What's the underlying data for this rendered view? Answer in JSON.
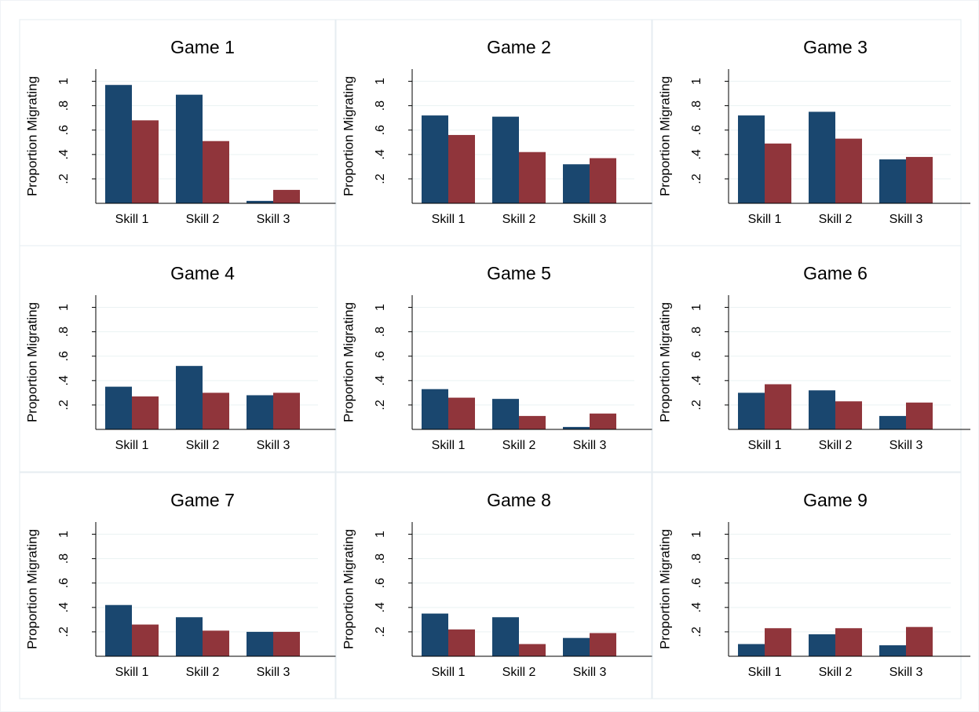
{
  "chart_data": [
    {
      "type": "bar",
      "title": "Game 1",
      "ylabel": "Proportion Migrating",
      "categories": [
        "Skill 1",
        "Skill 2",
        "Skill 3"
      ],
      "series": [
        {
          "color": "#1a476f",
          "values": [
            0.97,
            0.89,
            0.02
          ]
        },
        {
          "color": "#90353b",
          "values": [
            0.68,
            0.51,
            0.11
          ]
        }
      ],
      "ylim": [
        0,
        1.1
      ],
      "yticks": [
        {
          "value": 0.2,
          "label": ".2"
        },
        {
          "value": 0.4,
          "label": ".4"
        },
        {
          "value": 0.6,
          "label": ".6"
        },
        {
          "value": 0.8,
          "label": ".8"
        },
        1
      ],
      "grid": true
    },
    {
      "type": "bar",
      "title": "Game 2",
      "ylabel": "Proportion Migrating",
      "categories": [
        "Skill 1",
        "Skill 2",
        "Skill 3"
      ],
      "series": [
        {
          "color": "#1a476f",
          "values": [
            0.72,
            0.71,
            0.32
          ]
        },
        {
          "color": "#90353b",
          "values": [
            0.56,
            0.42,
            0.37
          ]
        }
      ],
      "ylim": [
        0,
        1.1
      ],
      "yticks": [
        {
          "value": 0.2,
          "label": ".2"
        },
        {
          "value": 0.4,
          "label": ".4"
        },
        {
          "value": 0.6,
          "label": ".6"
        },
        {
          "value": 0.8,
          "label": ".8"
        },
        1
      ],
      "grid": true
    },
    {
      "type": "bar",
      "title": "Game 3",
      "ylabel": "Proportion Migrating",
      "categories": [
        "Skill 1",
        "Skill 2",
        "Skill 3"
      ],
      "series": [
        {
          "color": "#1a476f",
          "values": [
            0.72,
            0.75,
            0.36
          ]
        },
        {
          "color": "#90353b",
          "values": [
            0.49,
            0.53,
            0.38
          ]
        }
      ],
      "ylim": [
        0,
        1.1
      ],
      "yticks": [
        {
          "value": 0.2,
          "label": ".2"
        },
        {
          "value": 0.4,
          "label": ".4"
        },
        {
          "value": 0.6,
          "label": ".6"
        },
        {
          "value": 0.8,
          "label": ".8"
        },
        1
      ],
      "grid": true
    },
    {
      "type": "bar",
      "title": "Game 4",
      "ylabel": "Proportion Migrating",
      "categories": [
        "Skill 1",
        "Skill 2",
        "Skill 3"
      ],
      "series": [
        {
          "color": "#1a476f",
          "values": [
            0.35,
            0.52,
            0.28
          ]
        },
        {
          "color": "#90353b",
          "values": [
            0.27,
            0.3,
            0.3
          ]
        }
      ],
      "ylim": [
        0,
        1.1
      ],
      "yticks": [
        {
          "value": 0.2,
          "label": ".2"
        },
        {
          "value": 0.4,
          "label": ".4"
        },
        {
          "value": 0.6,
          "label": ".6"
        },
        {
          "value": 0.8,
          "label": ".8"
        },
        1
      ],
      "grid": true
    },
    {
      "type": "bar",
      "title": "Game 5",
      "ylabel": "Proportion Migrating",
      "categories": [
        "Skill 1",
        "Skill 2",
        "Skill 3"
      ],
      "series": [
        {
          "color": "#1a476f",
          "values": [
            0.33,
            0.25,
            0.02
          ]
        },
        {
          "color": "#90353b",
          "values": [
            0.26,
            0.11,
            0.13
          ]
        }
      ],
      "ylim": [
        0,
        1.1
      ],
      "yticks": [
        {
          "value": 0.2,
          "label": ".2"
        },
        {
          "value": 0.4,
          "label": ".4"
        },
        {
          "value": 0.6,
          "label": ".6"
        },
        {
          "value": 0.8,
          "label": ".8"
        },
        1
      ],
      "grid": true
    },
    {
      "type": "bar",
      "title": "Game 6",
      "ylabel": "Proportion Migrating",
      "categories": [
        "Skill 1",
        "Skill 2",
        "Skill 3"
      ],
      "series": [
        {
          "color": "#1a476f",
          "values": [
            0.3,
            0.32,
            0.11
          ]
        },
        {
          "color": "#90353b",
          "values": [
            0.37,
            0.23,
            0.22
          ]
        }
      ],
      "ylim": [
        0,
        1.1
      ],
      "yticks": [
        {
          "value": 0.2,
          "label": ".2"
        },
        {
          "value": 0.4,
          "label": ".4"
        },
        {
          "value": 0.6,
          "label": ".6"
        },
        {
          "value": 0.8,
          "label": ".8"
        },
        1
      ],
      "grid": true
    },
    {
      "type": "bar",
      "title": "Game 7",
      "ylabel": "Proportion Migrating",
      "categories": [
        "Skill 1",
        "Skill 2",
        "Skill 3"
      ],
      "series": [
        {
          "color": "#1a476f",
          "values": [
            0.42,
            0.32,
            0.2
          ]
        },
        {
          "color": "#90353b",
          "values": [
            0.26,
            0.21,
            0.2
          ]
        }
      ],
      "ylim": [
        0,
        1.1
      ],
      "yticks": [
        {
          "value": 0.2,
          "label": ".2"
        },
        {
          "value": 0.4,
          "label": ".4"
        },
        {
          "value": 0.6,
          "label": ".6"
        },
        {
          "value": 0.8,
          "label": ".8"
        },
        1
      ],
      "grid": true
    },
    {
      "type": "bar",
      "title": "Game 8",
      "ylabel": "Proportion Migrating",
      "categories": [
        "Skill 1",
        "Skill 2",
        "Skill 3"
      ],
      "series": [
        {
          "color": "#1a476f",
          "values": [
            0.35,
            0.32,
            0.15
          ]
        },
        {
          "color": "#90353b",
          "values": [
            0.22,
            0.1,
            0.19
          ]
        }
      ],
      "ylim": [
        0,
        1.1
      ],
      "yticks": [
        {
          "value": 0.2,
          "label": ".2"
        },
        {
          "value": 0.4,
          "label": ".4"
        },
        {
          "value": 0.6,
          "label": ".6"
        },
        {
          "value": 0.8,
          "label": ".8"
        },
        1
      ],
      "grid": true
    },
    {
      "type": "bar",
      "title": "Game 9",
      "ylabel": "Proportion Migrating",
      "categories": [
        "Skill 1",
        "Skill 2",
        "Skill 3"
      ],
      "series": [
        {
          "color": "#1a476f",
          "values": [
            0.1,
            0.18,
            0.09
          ]
        },
        {
          "color": "#90353b",
          "values": [
            0.23,
            0.23,
            0.24
          ]
        }
      ],
      "ylim": [
        0,
        1.1
      ],
      "yticks": [
        {
          "value": 0.2,
          "label": ".2"
        },
        {
          "value": 0.4,
          "label": ".4"
        },
        {
          "value": 0.6,
          "label": ".6"
        },
        {
          "value": 0.8,
          "label": ".8"
        },
        1
      ],
      "grid": true
    }
  ]
}
